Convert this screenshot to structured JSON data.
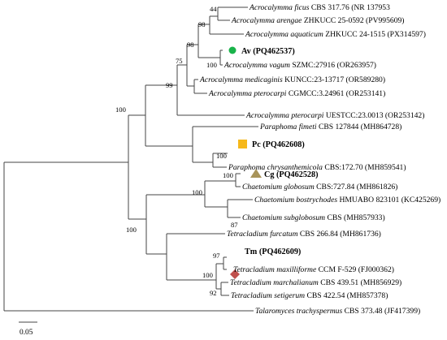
{
  "taxa": {
    "ficus": {
      "genus": "Acrocalymma ficus",
      "strain": "CBS 317.76",
      "acc": "(NR 137953"
    },
    "arengae": {
      "genus": "Acrocalymma arengae",
      "strain": "ZHKUCC 25-0592",
      "acc": "(PV995609)"
    },
    "aquaticum": {
      "genus": "Acrocalymma aquaticum",
      "strain": "ZHKUCC 24-1515",
      "acc": "(PX314597)"
    },
    "av": {
      "label": "Av (PQ462537)"
    },
    "vagum": {
      "genus": "Acrocalymma vagum",
      "strain": "SZMC:27916",
      "acc": "(OR263957)"
    },
    "medicaginis": {
      "genus": "Acrocalymma medicaginis",
      "strain": "KUNCC:23-13717",
      "acc": "(OR589280)"
    },
    "pterocarpi1": {
      "genus": "Acrocalymma pterocarpi",
      "strain": "CGMCC:3.24961",
      "acc": "(OR253141)"
    },
    "pterocarpi2": {
      "genus": "Acrocalymma pterocarpi",
      "strain": "UESTCC:23.0013",
      "acc": "(OR253142)"
    },
    "fimeti": {
      "genus": "Paraphoma fimeti",
      "strain": "CBS 127844",
      "acc": "(MH864728)"
    },
    "pc": {
      "label": "Pc (PQ462608)"
    },
    "chrysanth": {
      "genus": "Paraphoma chrysanthemicola",
      "strain": "CBS:172.70",
      "acc": "(MH859541)"
    },
    "cg": {
      "label": "Cg (PQ462528)"
    },
    "globosum": {
      "genus": "Chaetomium globosum",
      "strain": "CBS:727.84",
      "acc": "(MH861826)"
    },
    "bostry": {
      "genus": "Chaetomium bostrychodes",
      "strain": "HMUABO 823101",
      "acc": "(KC425269)"
    },
    "subglob": {
      "genus": "Chaetomium subglobosum",
      "strain": "CBS",
      "acc": "(MH857933)"
    },
    "furcatum": {
      "genus": "Tetracladium furcatum",
      "strain": "CBS 266.84",
      "acc": "(MH861736)"
    },
    "tm": {
      "label": "Tm (PQ462609)"
    },
    "maxill": {
      "genus": "Tetracladium maxilliforme",
      "strain": "CCM F-529",
      "acc": "(FJ000362)"
    },
    "marchal": {
      "genus": "Tetracladium marchalianum",
      "strain": "CBS 439.51",
      "acc": "(MH856929)"
    },
    "setigerum": {
      "genus": "Tetracladium setigerum",
      "strain": "CBS 422.54",
      "acc": "(MH857378)"
    },
    "talaro": {
      "genus": "Talaromyces trachyspermus",
      "strain": "CBS 373.48",
      "acc": "(JF417399)"
    }
  },
  "bootstrap": {
    "b44": "44",
    "b98a": "98",
    "b98b": "98",
    "b100a": "100",
    "b75": "75",
    "b99": "99",
    "b100root": "100",
    "b100pc": "100",
    "b100cg": "100",
    "b87": "87",
    "b100chae": "100",
    "b100c": "100",
    "b97": "97",
    "b100t": "100",
    "b92": "92"
  },
  "markers": {
    "av": {
      "shape": "circle",
      "color": "#19b34a"
    },
    "pc": {
      "shape": "square",
      "color": "#f6b81a"
    },
    "cg": {
      "shape": "triangle",
      "color": "#a8945a"
    },
    "tm": {
      "shape": "diamond",
      "color": "#c0504d"
    }
  },
  "scale_bar": {
    "label": "0.05"
  }
}
